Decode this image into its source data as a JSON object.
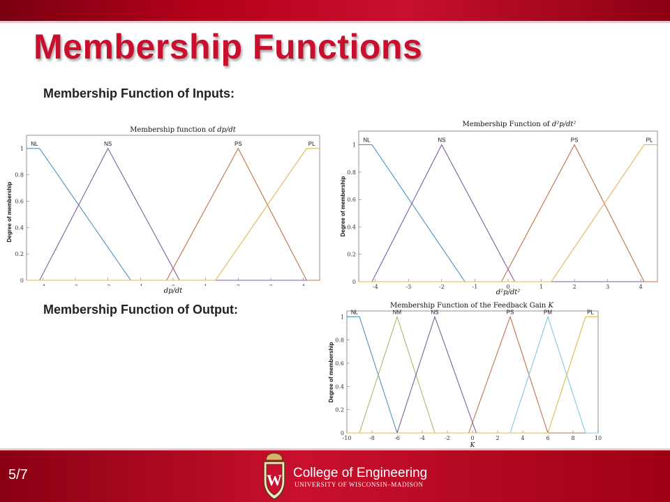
{
  "slide": {
    "title": "Membership Functions",
    "subhead_inputs": "Membership Function of Inputs:",
    "subhead_output": "Membership Function of Output:",
    "page_number": "5/7",
    "footer_college": "College of Engineering",
    "footer_university": "UNIVERSITY OF WISCONSIN–MADISON",
    "colors": {
      "brand_red": "#c8102e",
      "dark_red": "#8a0012"
    }
  },
  "chart_data": [
    {
      "type": "line",
      "title": "Membership function of dp/dt",
      "xlabel": "dp/dt",
      "ylabel": "Degree of membership",
      "xlim": [
        -4.5,
        4.5
      ],
      "ylim": [
        0,
        1.1
      ],
      "xticks": [
        -4,
        -3,
        -2,
        -1,
        0,
        1,
        2,
        3,
        4
      ],
      "yticks": [
        0,
        0.2,
        0.4,
        0.6,
        0.8,
        1
      ],
      "grid": false,
      "series": [
        {
          "name": "NL",
          "color": "#4c92c3",
          "x": [
            -4.5,
            -4.1,
            -1.3,
            4.5
          ],
          "y": [
            1,
            1,
            0,
            0
          ]
        },
        {
          "name": "NS",
          "color": "#7e5c9b",
          "x": [
            -4.5,
            -4.1,
            -2,
            0.2,
            4.5
          ],
          "y": [
            0,
            0,
            1,
            0,
            0
          ]
        },
        {
          "name": "PS",
          "color": "#c0704a",
          "x": [
            -4.5,
            -0.2,
            2,
            4.1,
            4.5
          ],
          "y": [
            0,
            0,
            1,
            0,
            0
          ]
        },
        {
          "name": "PL",
          "color": "#e0b94a",
          "x": [
            -4.5,
            1.3,
            4.1,
            4.5
          ],
          "y": [
            0,
            0,
            1,
            1
          ]
        }
      ]
    },
    {
      "type": "line",
      "title": "Membership Function of d²p/dt²",
      "xlabel": "d²p/dt²",
      "ylabel": "Degree of membership",
      "xlim": [
        -4.5,
        4.5
      ],
      "ylim": [
        0,
        1.1
      ],
      "xticks": [
        -4,
        -3,
        -2,
        -1,
        0,
        1,
        2,
        3,
        4
      ],
      "yticks": [
        0,
        0.2,
        0.4,
        0.6,
        0.8,
        1
      ],
      "grid": false,
      "series": [
        {
          "name": "NL",
          "color": "#4c92c3",
          "x": [
            -4.5,
            -4.1,
            -1.3,
            4.5
          ],
          "y": [
            1,
            1,
            0,
            0
          ]
        },
        {
          "name": "NS",
          "color": "#7e5c9b",
          "x": [
            -4.5,
            -4.1,
            -2,
            0.2,
            4.5
          ],
          "y": [
            0,
            0,
            1,
            0,
            0
          ]
        },
        {
          "name": "PS",
          "color": "#c0704a",
          "x": [
            -4.5,
            -0.2,
            2,
            4.1,
            4.5
          ],
          "y": [
            0,
            0,
            1,
            0,
            0
          ]
        },
        {
          "name": "PL",
          "color": "#e0b94a",
          "x": [
            -4.5,
            1.3,
            4.1,
            4.5
          ],
          "y": [
            0,
            0,
            1,
            1
          ]
        }
      ]
    },
    {
      "type": "line",
      "title": "Membership Function of the Feedback Gain K",
      "xlabel": "K",
      "ylabel": "Degree of membership",
      "xlim": [
        -10,
        10
      ],
      "ylim": [
        0,
        1.05
      ],
      "xticks": [
        -10,
        -8,
        -6,
        -4,
        -2,
        0,
        2,
        4,
        6,
        8,
        10
      ],
      "yticks": [
        0,
        0.2,
        0.4,
        0.6,
        0.8,
        1
      ],
      "grid": false,
      "series": [
        {
          "name": "NL",
          "color": "#4c92c3",
          "x": [
            -10,
            -9,
            -6,
            10
          ],
          "y": [
            1,
            1,
            0,
            0
          ]
        },
        {
          "name": "NM",
          "color": "#a8b96a",
          "x": [
            -10,
            -9,
            -6,
            -3,
            10
          ],
          "y": [
            0,
            0,
            1,
            0,
            0
          ]
        },
        {
          "name": "NS",
          "color": "#7e5c9b",
          "x": [
            -10,
            -6,
            -3,
            0.3,
            10
          ],
          "y": [
            0,
            0,
            1,
            0,
            0
          ]
        },
        {
          "name": "PS",
          "color": "#c0704a",
          "x": [
            -10,
            -0.3,
            3,
            6,
            10
          ],
          "y": [
            0,
            0,
            1,
            0,
            0
          ]
        },
        {
          "name": "PM",
          "color": "#7fc8e8",
          "x": [
            -10,
            3,
            6,
            9,
            10
          ],
          "y": [
            0,
            0,
            1,
            0,
            0
          ]
        },
        {
          "name": "PL",
          "color": "#e0b94a",
          "x": [
            -10,
            6,
            9,
            10
          ],
          "y": [
            0,
            0,
            1,
            1
          ]
        }
      ]
    }
  ]
}
